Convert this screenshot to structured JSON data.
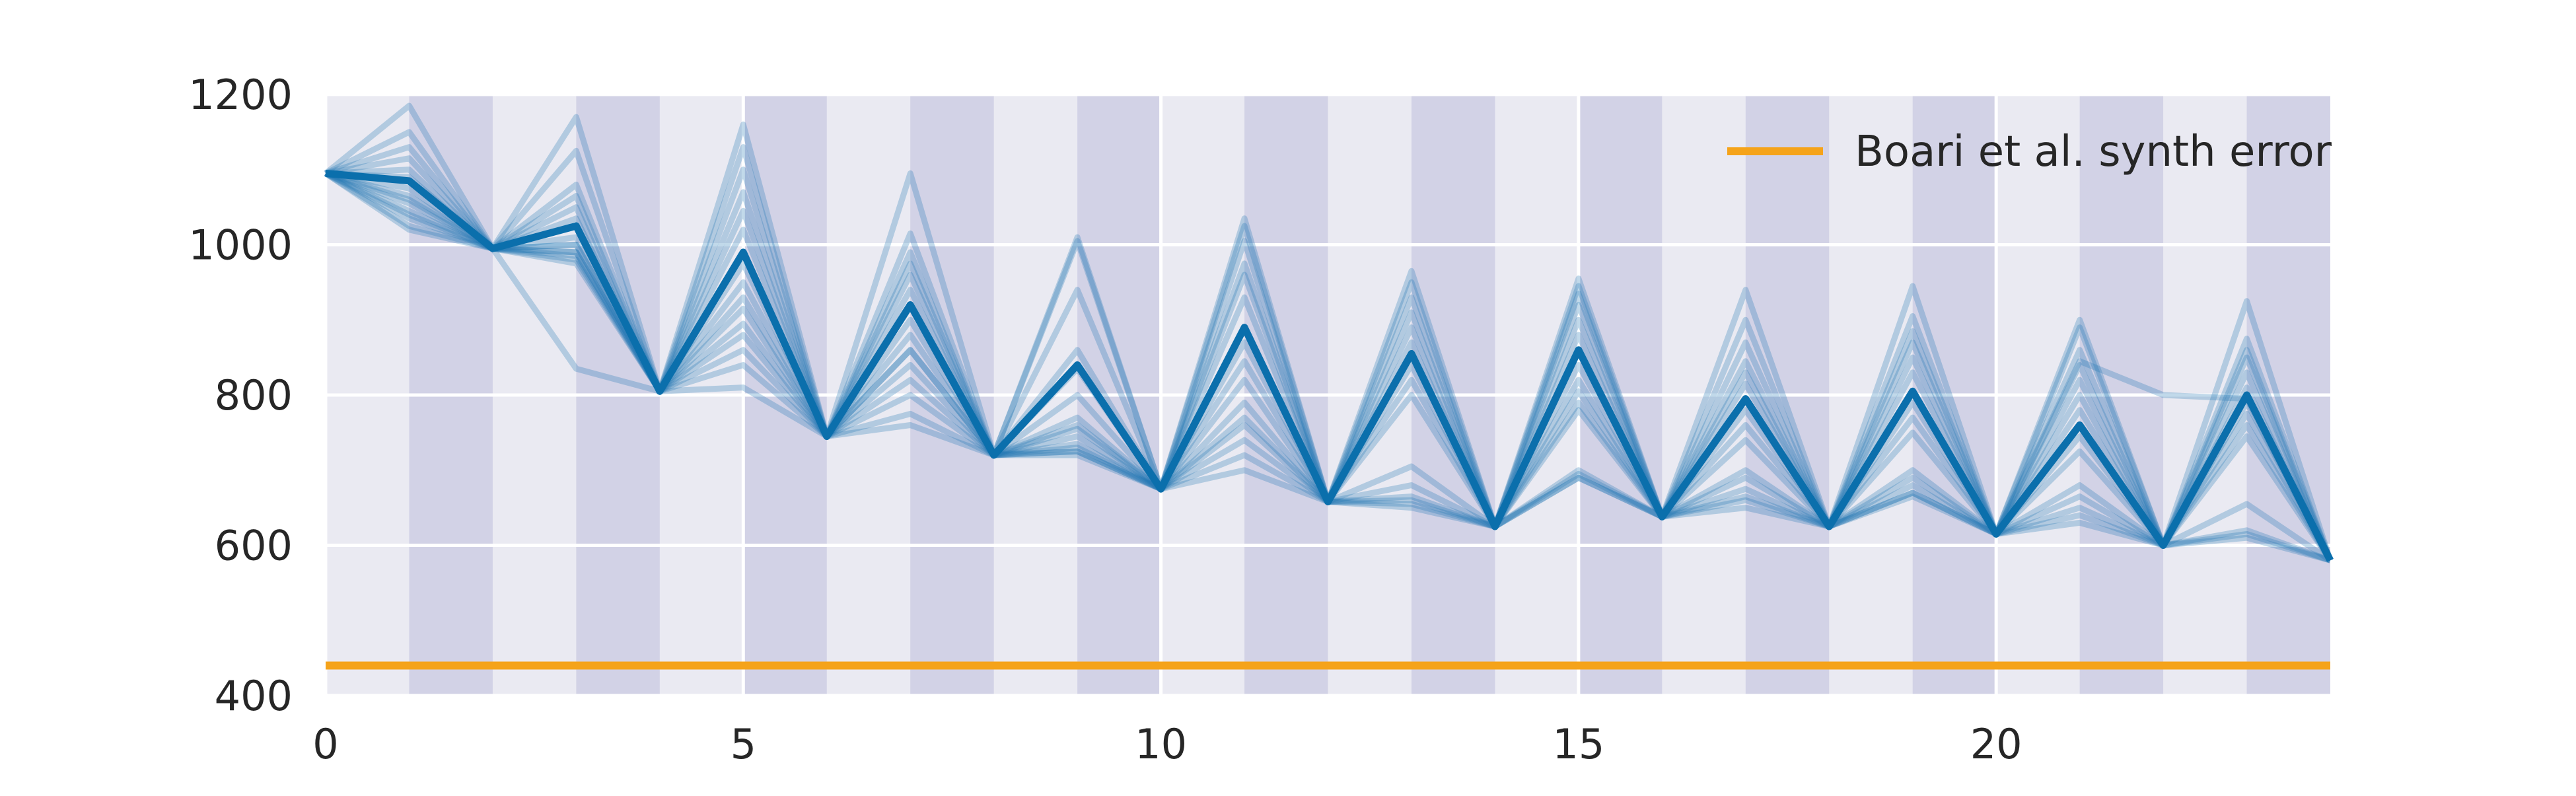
{
  "chart_data": {
    "type": "line",
    "title": "",
    "xlabel": "",
    "ylabel": "",
    "xlim": [
      0,
      24
    ],
    "ylim": [
      400,
      1200
    ],
    "grid": true,
    "legend_position": "top-right",
    "x_ticks": [
      0,
      5,
      10,
      15,
      20
    ],
    "y_ticks": [
      400,
      600,
      800,
      1000,
      1200
    ],
    "shaded_x_intervals": [
      [
        1,
        2
      ],
      [
        3,
        4
      ],
      [
        5,
        6
      ],
      [
        7,
        8
      ],
      [
        9,
        10
      ],
      [
        11,
        12
      ],
      [
        13,
        14
      ],
      [
        15,
        16
      ],
      [
        17,
        18
      ],
      [
        19,
        20
      ],
      [
        21,
        22
      ],
      [
        23,
        24
      ]
    ],
    "x": [
      0,
      1,
      2,
      3,
      4,
      5,
      6,
      7,
      8,
      9,
      10,
      11,
      12,
      13,
      14,
      15,
      16,
      17,
      18,
      19,
      20,
      21,
      22,
      23,
      24
    ],
    "reference_lines": [
      {
        "name": "Boari et al. synth error",
        "y": 440,
        "color": "#f5a31a"
      }
    ],
    "series_main": {
      "color": "#0b6fac",
      "values": [
        1095,
        1085,
        995,
        1025,
        805,
        990,
        745,
        920,
        720,
        840,
        675,
        890,
        658,
        855,
        625,
        860,
        638,
        795,
        625,
        805,
        615,
        760,
        600,
        800,
        580
      ]
    },
    "series_faint": {
      "color": "#1f78b4",
      "values": [
        [
          1095,
          1185,
          995,
          1170,
          805,
          1160,
          745,
          1095,
          720,
          1010,
          675,
          1035,
          658,
          965,
          625,
          955,
          638,
          940,
          625,
          945,
          615,
          900,
          600,
          925,
          580
        ],
        [
          1095,
          1150,
          995,
          1125,
          805,
          1130,
          745,
          1015,
          720,
          1005,
          675,
          1025,
          658,
          950,
          625,
          945,
          638,
          900,
          625,
          905,
          615,
          890,
          600,
          875,
          580
        ],
        [
          1095,
          1130,
          995,
          1080,
          805,
          1100,
          745,
          990,
          720,
          940,
          675,
          1005,
          658,
          930,
          625,
          935,
          638,
          870,
          625,
          885,
          615,
          860,
          600,
          860,
          580
        ],
        [
          1095,
          1115,
          995,
          1065,
          805,
          1070,
          745,
          975,
          720,
          860,
          675,
          975,
          658,
          910,
          625,
          920,
          638,
          845,
          625,
          870,
          615,
          840,
          600,
          850,
          580
        ],
        [
          1095,
          1100,
          995,
          1050,
          805,
          1045,
          745,
          960,
          720,
          835,
          675,
          960,
          658,
          890,
          625,
          900,
          638,
          830,
          625,
          850,
          615,
          820,
          600,
          830,
          580
        ],
        [
          1095,
          1090,
          995,
          1035,
          805,
          1020,
          745,
          940,
          720,
          800,
          675,
          930,
          658,
          870,
          625,
          880,
          638,
          815,
          625,
          830,
          615,
          800,
          600,
          810,
          580
        ],
        [
          1095,
          1075,
          995,
          1010,
          805,
          975,
          745,
          900,
          720,
          770,
          675,
          870,
          658,
          840,
          625,
          840,
          638,
          780,
          625,
          790,
          615,
          780,
          600,
          790,
          580
        ],
        [
          1095,
          1065,
          995,
          1000,
          805,
          950,
          745,
          880,
          720,
          760,
          675,
          845,
          658,
          820,
          625,
          820,
          638,
          760,
          625,
          770,
          615,
          745,
          600,
          775,
          580
        ],
        [
          1095,
          1055,
          995,
          990,
          805,
          930,
          745,
          860,
          720,
          745,
          675,
          820,
          658,
          800,
          625,
          805,
          638,
          740,
          625,
          750,
          615,
          725,
          600,
          760,
          580
        ],
        [
          1095,
          1045,
          995,
          985,
          805,
          880,
          745,
          840,
          720,
          735,
          675,
          790,
          658,
          705,
          625,
          790,
          638,
          700,
          625,
          700,
          615,
          680,
          600,
          745,
          580
        ],
        [
          1095,
          1035,
          995,
          980,
          805,
          860,
          745,
          820,
          720,
          730,
          675,
          770,
          658,
          665,
          625,
          780,
          638,
          690,
          625,
          690,
          615,
          665,
          600,
          655,
          580
        ],
        [
          1095,
          1025,
          995,
          975,
          805,
          840,
          745,
          800,
          720,
          725,
          675,
          740,
          658,
          660,
          625,
          700,
          638,
          675,
          625,
          680,
          615,
          650,
          600,
          620,
          580
        ],
        [
          1095,
          1020,
          995,
          835,
          805,
          810,
          745,
          775,
          720,
          720,
          675,
          720,
          658,
          650,
          625,
          690,
          638,
          665,
          625,
          670,
          615,
          640,
          600,
          615,
          580
        ],
        [
          1095,
          1040,
          995,
          990,
          805,
          895,
          745,
          860,
          720,
          755,
          675,
          760,
          658,
          680,
          625,
          695,
          638,
          660,
          625,
          670,
          615,
          845,
          800,
          795,
          580
        ],
        [
          1095,
          1060,
          995,
          1000,
          805,
          915,
          745,
          760,
          720,
          725,
          675,
          700,
          658,
          655,
          625,
          690,
          638,
          650,
          625,
          665,
          615,
          630,
          600,
          610,
          580
        ]
      ]
    }
  }
}
